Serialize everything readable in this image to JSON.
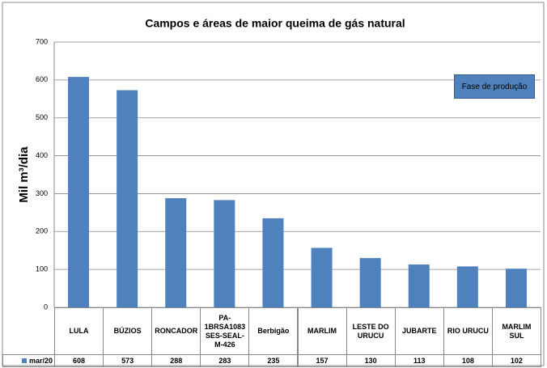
{
  "chart_data": {
    "type": "bar",
    "title": "Campos e áreas de maior queima de gás natural",
    "y_label": "Mil m³/dia",
    "annotation": "Fase de produção",
    "categories": [
      "LULA",
      "BÚZIOS",
      "RONCADOR",
      "PA-1BRSA1083SES-SEAL-M-426",
      "Berbigão",
      "MARLIM",
      "LESTE DO URUCU",
      "JUBARTE",
      "RIO URUCU",
      "MARLIM SUL"
    ],
    "series": [
      {
        "name": "mar/20",
        "color": "#4f81bd",
        "values": [
          608,
          573,
          288,
          283,
          235,
          157,
          130,
          113,
          108,
          102
        ]
      }
    ],
    "ylim": [
      0,
      700
    ],
    "yticks": [
      0,
      100,
      200,
      300,
      400,
      500,
      600,
      700
    ],
    "grid": true
  }
}
